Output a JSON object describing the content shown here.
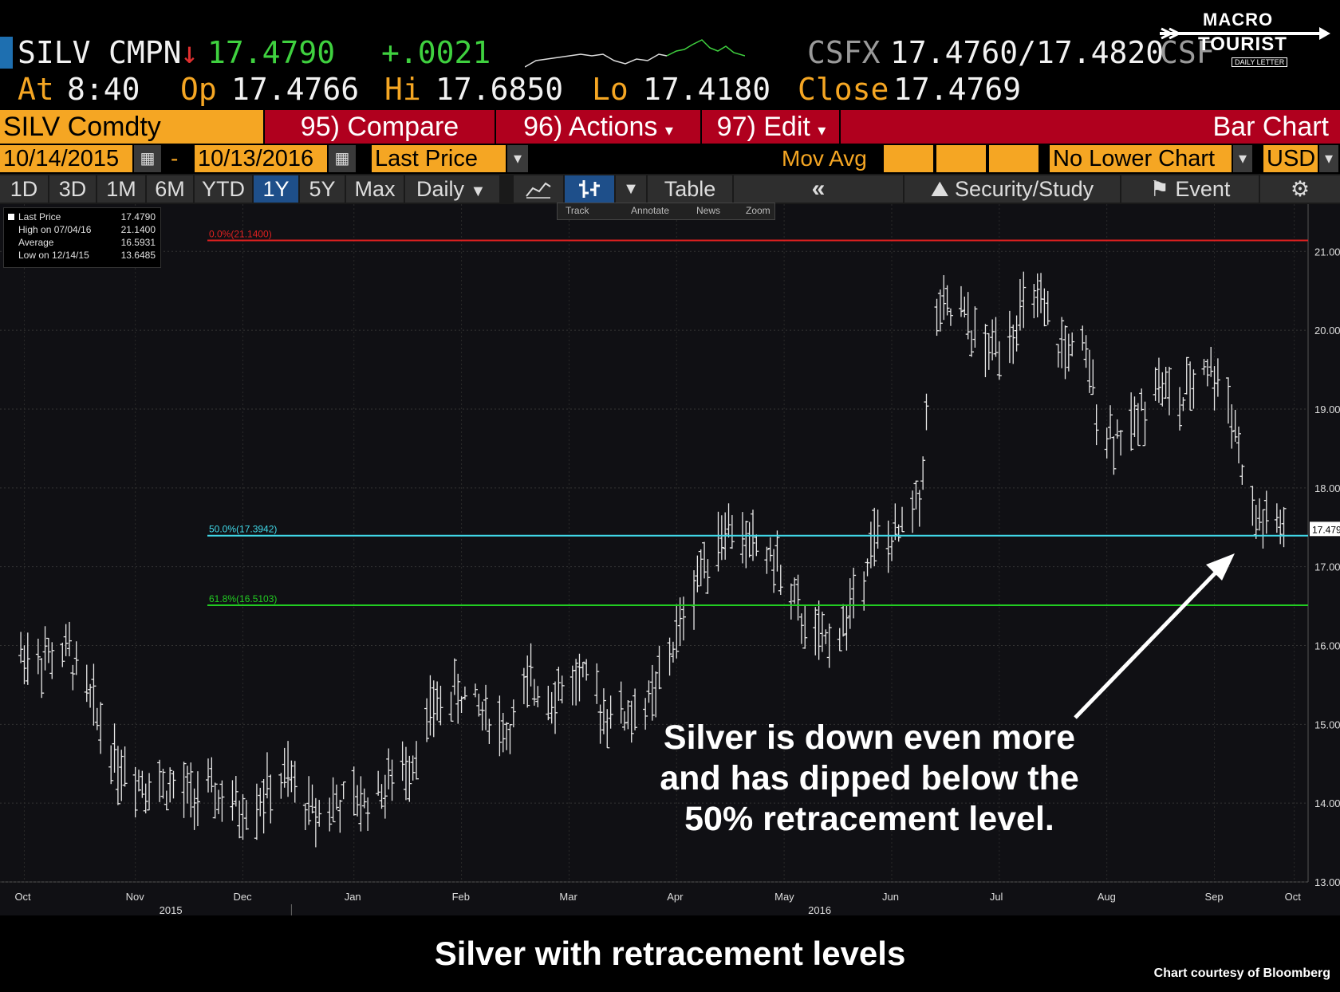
{
  "quote": {
    "ticker": "SILV",
    "source": "CMPN",
    "down_arrow": "↓",
    "last": "17.4790",
    "change": "+.0021",
    "alt_source": "CSFX",
    "bid_ask": "17.4760/17.4820",
    "alt_source_repeat": "CSF",
    "at_label": "At",
    "at_time": "8:40",
    "op_label": "Op",
    "op_value": "17.4766",
    "hi_label": "Hi",
    "hi_value": "17.6850",
    "lo_label": "Lo",
    "lo_value": "17.4180",
    "close_label": "Close",
    "close_value": "17.4769"
  },
  "logo": {
    "line1": "MACRO",
    "line2": "TOURIST",
    "line3": "DAILY LETTER"
  },
  "toolbar": {
    "security": "SILV Comdty",
    "compare": "95) Compare",
    "actions": "96) Actions",
    "edit": "97) Edit",
    "chart_type": "Bar Chart"
  },
  "daterow": {
    "start_date": "10/14/2015",
    "dash": "-",
    "end_date": "10/13/2016",
    "field": "Last Price",
    "mov_avg": "Mov Avg",
    "lower_chart": "No Lower Chart",
    "currency": "USD"
  },
  "timeframes": {
    "items": [
      "1D",
      "3D",
      "1M",
      "6M",
      "YTD",
      "1Y",
      "5Y",
      "Max"
    ],
    "selected": "1Y",
    "period": "Daily",
    "table": "Table",
    "security_study": "Security/Study",
    "event": "Event"
  },
  "toolstrip": {
    "track": "Track",
    "annotate": "Annotate",
    "news": "News",
    "zoom": "Zoom"
  },
  "legend": {
    "rows": [
      {
        "label": "Last Price",
        "value": "17.4790"
      },
      {
        "label": "High on 07/04/16",
        "value": "21.1400"
      },
      {
        "label": "Average",
        "value": "16.5931"
      },
      {
        "label": "Low on 12/14/15",
        "value": "13.6485"
      }
    ]
  },
  "annotation": "Silver is down even more and has dipped below the 50% retracement level.",
  "caption": "Silver with retracement levels",
  "credit": "Chart courtesy of Bloomberg",
  "colors": {
    "amber": "#f5a623",
    "red_bar": "#b0001e",
    "up_green": "#3fd13f",
    "fib_0": "#e02020",
    "fib_50": "#40d8e8",
    "fib_618": "#22cc22",
    "bars": "#e8e8e8"
  },
  "chart_data": {
    "type": "bar",
    "title": "",
    "xlabel": "",
    "ylabel": "",
    "ylim": [
      13.0,
      21.6
    ],
    "yticks": [
      "13.0000",
      "14.0000",
      "15.0000",
      "16.0000",
      "17.0000",
      "18.0000",
      "19.0000",
      "20.0000",
      "21.0000"
    ],
    "last_price_label": "17.4790",
    "x_months": [
      "Oct",
      "Nov",
      "Dec",
      "Jan",
      "Feb",
      "Mar",
      "Apr",
      "May",
      "Jun",
      "Jul",
      "Aug",
      "Sep",
      "Oct"
    ],
    "x_years": [
      "2015",
      "2016"
    ],
    "retracement_levels": [
      {
        "label": "0.0%(21.1400)",
        "value": 21.14
      },
      {
        "label": "50.0%(17.3942)",
        "value": 17.3942
      },
      {
        "label": "61.8%(16.5103)",
        "value": 16.5103
      }
    ],
    "weekly_path": [
      {
        "date": "2015-10-14",
        "close": 15.9
      },
      {
        "date": "2015-10-21",
        "close": 15.85
      },
      {
        "date": "2015-10-28",
        "close": 15.9
      },
      {
        "date": "2015-11-04",
        "close": 15.2
      },
      {
        "date": "2015-11-11",
        "close": 14.5
      },
      {
        "date": "2015-11-18",
        "close": 14.3
      },
      {
        "date": "2015-11-25",
        "close": 14.2
      },
      {
        "date": "2015-12-02",
        "close": 14.1
      },
      {
        "date": "2015-12-09",
        "close": 14.1
      },
      {
        "date": "2015-12-16",
        "close": 13.9
      },
      {
        "date": "2015-12-23",
        "close": 14.1
      },
      {
        "date": "2015-12-30",
        "close": 14.3
      },
      {
        "date": "2016-01-06",
        "close": 13.9
      },
      {
        "date": "2016-01-13",
        "close": 14.0
      },
      {
        "date": "2016-01-20",
        "close": 14.0
      },
      {
        "date": "2016-01-27",
        "close": 14.2
      },
      {
        "date": "2016-02-03",
        "close": 14.5
      },
      {
        "date": "2016-02-10",
        "close": 15.2
      },
      {
        "date": "2016-02-17",
        "close": 15.4
      },
      {
        "date": "2016-02-24",
        "close": 15.2
      },
      {
        "date": "2016-03-02",
        "close": 14.9
      },
      {
        "date": "2016-03-09",
        "close": 15.5
      },
      {
        "date": "2016-03-16",
        "close": 15.4
      },
      {
        "date": "2016-03-23",
        "close": 15.6
      },
      {
        "date": "2016-03-30",
        "close": 15.2
      },
      {
        "date": "2016-04-06",
        "close": 15.1
      },
      {
        "date": "2016-04-13",
        "close": 15.3
      },
      {
        "date": "2016-04-20",
        "close": 16.1
      },
      {
        "date": "2016-04-27",
        "close": 17.0
      },
      {
        "date": "2016-05-04",
        "close": 17.5
      },
      {
        "date": "2016-05-11",
        "close": 17.3
      },
      {
        "date": "2016-05-18",
        "close": 17.1
      },
      {
        "date": "2016-05-25",
        "close": 16.4
      },
      {
        "date": "2016-06-01",
        "close": 16.0
      },
      {
        "date": "2016-06-08",
        "close": 16.3
      },
      {
        "date": "2016-06-15",
        "close": 17.3
      },
      {
        "date": "2016-06-22",
        "close": 17.3
      },
      {
        "date": "2016-06-29",
        "close": 17.9
      },
      {
        "date": "2016-07-04",
        "close": 20.2
      },
      {
        "date": "2016-07-11",
        "close": 20.2
      },
      {
        "date": "2016-07-18",
        "close": 19.7
      },
      {
        "date": "2016-07-25",
        "close": 20.0
      },
      {
        "date": "2016-08-01",
        "close": 20.4
      },
      {
        "date": "2016-08-08",
        "close": 19.8
      },
      {
        "date": "2016-08-15",
        "close": 19.7
      },
      {
        "date": "2016-08-22",
        "close": 18.7
      },
      {
        "date": "2016-08-29",
        "close": 18.7
      },
      {
        "date": "2016-09-05",
        "close": 19.4
      },
      {
        "date": "2016-09-12",
        "close": 19.0
      },
      {
        "date": "2016-09-19",
        "close": 19.6
      },
      {
        "date": "2016-09-26",
        "close": 19.2
      },
      {
        "date": "2016-10-03",
        "close": 17.6
      },
      {
        "date": "2016-10-13",
        "close": 17.48
      }
    ]
  }
}
